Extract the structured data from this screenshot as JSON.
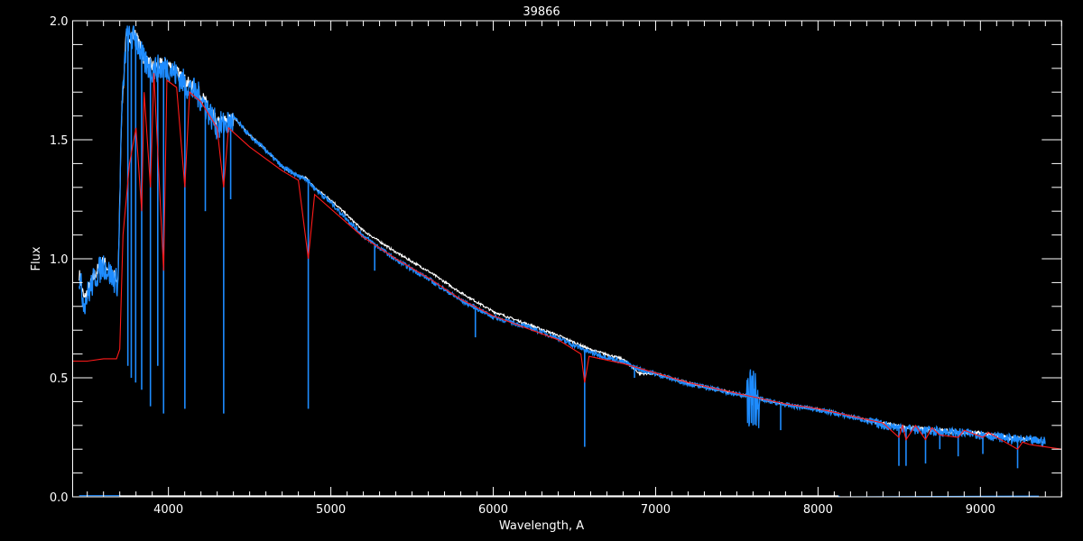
{
  "chart_data": {
    "type": "line",
    "title": "39866",
    "xlabel": "Wavelength, A",
    "ylabel": "Flux",
    "xlim": [
      3410,
      9500
    ],
    "ylim": [
      0.0,
      2.0
    ],
    "x_ticks": [
      4000,
      5000,
      6000,
      7000,
      8000,
      9000
    ],
    "x_tick_labels": [
      "4000",
      "5000",
      "6000",
      "7000",
      "8000",
      "9000"
    ],
    "y_ticks": [
      0.0,
      0.5,
      1.0,
      1.5,
      2.0
    ],
    "y_tick_labels": [
      "0.0",
      "0.5",
      "1.0",
      "1.5",
      "2.0"
    ],
    "x_minor_step": 100,
    "y_minor_step": 0.1,
    "grid": false,
    "background": "#000000",
    "series": [
      {
        "color": "#ffffff",
        "x": [
          3450,
          3480,
          3500,
          3550,
          3600,
          3650,
          3690,
          3710,
          3740,
          3800,
          3850,
          3900,
          4000,
          4100,
          4200,
          4300,
          4400,
          4500,
          4600,
          4700,
          4800,
          4850,
          4900,
          5000,
          5200,
          5400,
          5600,
          5800,
          6000,
          6200,
          6400,
          6600,
          6800,
          6900,
          7000,
          7200,
          7400,
          7600,
          7800,
          8000,
          8200,
          8400,
          8600,
          8800,
          9000,
          9200,
          9400
        ],
        "y": [
          0.95,
          0.84,
          0.87,
          0.95,
          1.0,
          0.95,
          0.92,
          1.6,
          1.95,
          1.95,
          1.85,
          1.82,
          1.83,
          1.76,
          1.7,
          1.58,
          1.6,
          1.52,
          1.46,
          1.39,
          1.35,
          1.34,
          1.3,
          1.25,
          1.12,
          1.03,
          0.95,
          0.86,
          0.78,
          0.73,
          0.68,
          0.62,
          0.58,
          0.52,
          0.52,
          0.48,
          0.45,
          0.42,
          0.39,
          0.37,
          0.34,
          0.31,
          0.29,
          0.28,
          0.27,
          0.25,
          0.24
        ]
      },
      {
        "color": "#1e8cff",
        "x": [
          3450,
          3480,
          3500,
          3550,
          3600,
          3650,
          3690,
          3710,
          3740,
          3800,
          3850,
          3900,
          4000,
          4100,
          4200,
          4300,
          4400,
          4500,
          4600,
          4700,
          4800,
          4850,
          4900,
          5000,
          5200,
          5400,
          5600,
          5800,
          6000,
          6200,
          6400,
          6600,
          6800,
          6900,
          7000,
          7200,
          7400,
          7600,
          7800,
          8000,
          8200,
          8400,
          8600,
          8800,
          9000,
          9200,
          9400
        ],
        "y": [
          0.95,
          0.84,
          0.87,
          0.95,
          1.0,
          0.95,
          0.92,
          1.6,
          1.95,
          1.95,
          1.85,
          1.82,
          1.83,
          1.76,
          1.7,
          1.58,
          1.6,
          1.52,
          1.46,
          1.39,
          1.35,
          1.34,
          1.3,
          1.24,
          1.1,
          1.0,
          0.92,
          0.83,
          0.76,
          0.72,
          0.67,
          0.61,
          0.57,
          0.54,
          0.52,
          0.48,
          0.45,
          0.42,
          0.39,
          0.37,
          0.34,
          0.31,
          0.29,
          0.28,
          0.27,
          0.25,
          0.24
        ],
        "absorption_minima": [
          [
            3750,
            0.55
          ],
          [
            3771,
            0.5
          ],
          [
            3798,
            0.48
          ],
          [
            3835,
            0.45
          ],
          [
            3889,
            0.38
          ],
          [
            3934,
            0.55
          ],
          [
            3970,
            0.35
          ],
          [
            4101,
            0.37
          ],
          [
            4227,
            1.2
          ],
          [
            4340,
            0.35
          ],
          [
            4383,
            1.25
          ],
          [
            4861,
            0.37
          ],
          [
            5270,
            0.95
          ],
          [
            5890,
            0.67
          ],
          [
            6563,
            0.21
          ],
          [
            6870,
            0.5
          ],
          [
            7600,
            0.3
          ],
          [
            7770,
            0.28
          ],
          [
            8498,
            0.13
          ],
          [
            8542,
            0.13
          ],
          [
            8662,
            0.14
          ],
          [
            8750,
            0.2
          ],
          [
            8863,
            0.17
          ],
          [
            9015,
            0.18
          ],
          [
            9229,
            0.12
          ]
        ]
      },
      {
        "color": "#ff1a1a",
        "x": [
          3410,
          3500,
          3600,
          3680,
          3700,
          3720,
          3760,
          3800,
          3835,
          3850,
          3889,
          3910,
          3970,
          3990,
          4050,
          4101,
          4130,
          4200,
          4300,
          4340,
          4370,
          4500,
          4700,
          4800,
          4861,
          4900,
          5000,
          5200,
          5400,
          5600,
          5800,
          6000,
          6200,
          6400,
          6540,
          6563,
          6590,
          6800,
          7000,
          7200,
          7400,
          7600,
          7800,
          8000,
          8200,
          8400,
          8498,
          8520,
          8542,
          8600,
          8662,
          8700,
          8750,
          8863,
          8900,
          9015,
          9050,
          9229,
          9260,
          9300,
          9400,
          9500
        ],
        "y": [
          0.57,
          0.57,
          0.58,
          0.58,
          0.62,
          1.1,
          1.4,
          1.55,
          1.2,
          1.7,
          1.3,
          1.78,
          0.95,
          1.75,
          1.72,
          1.3,
          1.7,
          1.66,
          1.55,
          1.3,
          1.55,
          1.47,
          1.37,
          1.33,
          1.0,
          1.27,
          1.21,
          1.09,
          1.0,
          0.92,
          0.83,
          0.76,
          0.71,
          0.66,
          0.6,
          0.48,
          0.59,
          0.56,
          0.52,
          0.48,
          0.45,
          0.42,
          0.39,
          0.37,
          0.34,
          0.31,
          0.25,
          0.3,
          0.24,
          0.3,
          0.24,
          0.29,
          0.26,
          0.25,
          0.28,
          0.25,
          0.27,
          0.2,
          0.23,
          0.22,
          0.21,
          0.2
        ]
      },
      {
        "color": "#1e8cff",
        "x": [
          3450,
          3700,
          3710,
          8130,
          8131,
          9270,
          9360
        ],
        "y": [
          0.005,
          0.005,
          0.003,
          0.003,
          0,
          0.003,
          0.003
        ]
      },
      {
        "color": "#ffffff",
        "x": [
          3700,
          8125
        ],
        "y": [
          0.004,
          0.004
        ]
      }
    ]
  }
}
